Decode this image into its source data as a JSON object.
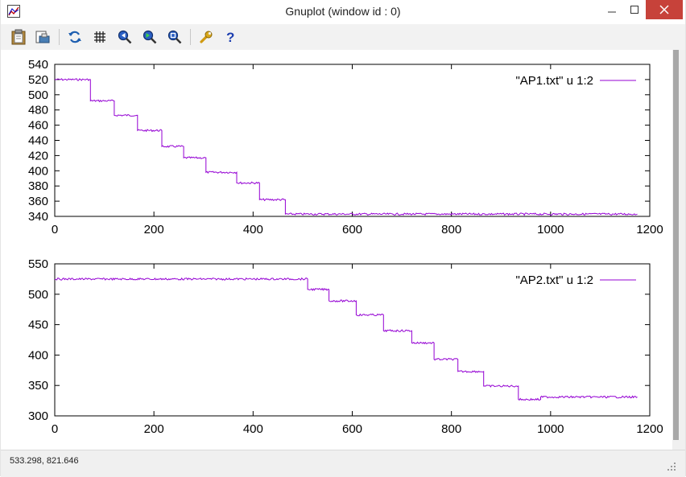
{
  "window": {
    "title": "Gnuplot (window id : 0)",
    "app_icon": "gnuplot-app-icon",
    "controls": [
      "minimize-icon",
      "maximize-icon",
      "close-icon"
    ]
  },
  "toolbar": {
    "buttons": [
      {
        "name": "copy-to-clipboard",
        "icon": "clipboard-icon"
      },
      {
        "name": "print",
        "icon": "print-icon"
      },
      {
        "name": "replot",
        "icon": "replot-icon"
      },
      {
        "name": "toggle-grid",
        "icon": "grid-icon"
      },
      {
        "name": "zoom-previous",
        "icon": "zoom-previous-icon"
      },
      {
        "name": "zoom-next",
        "icon": "zoom-next-icon"
      },
      {
        "name": "autoscale",
        "icon": "autoscale-icon"
      },
      {
        "name": "options",
        "icon": "wrench-icon"
      },
      {
        "name": "help",
        "icon": "help-icon"
      }
    ]
  },
  "status": {
    "coordinates": "533.298,  821.646"
  },
  "colors": {
    "series": "#9400d3",
    "close_button": "#c7423a",
    "toolbar_bg": "#f2f2f2"
  },
  "chart_data": [
    {
      "type": "line",
      "title": "",
      "xlabel": "",
      "ylabel": "",
      "xlim": [
        0,
        1200
      ],
      "ylim": [
        340,
        540
      ],
      "xticks": [
        "0",
        "200",
        "400",
        "600",
        "800",
        "1000",
        "1200"
      ],
      "yticks": [
        "340",
        "360",
        "380",
        "400",
        "420",
        "440",
        "460",
        "480",
        "500",
        "520",
        "540"
      ],
      "legend_position": "top-right",
      "series": [
        {
          "name": "\"AP1.txt\" u 1:2",
          "steps": [
            {
              "x": [
                0,
                72
              ],
              "y": 520
            },
            {
              "x": [
                72,
                120
              ],
              "y": 492
            },
            {
              "x": [
                120,
                167
              ],
              "y": 473
            },
            {
              "x": [
                167,
                216
              ],
              "y": 453
            },
            {
              "x": [
                216,
                260
              ],
              "y": 432
            },
            {
              "x": [
                260,
                305
              ],
              "y": 417
            },
            {
              "x": [
                305,
                367
              ],
              "y": 398
            },
            {
              "x": [
                367,
                413
              ],
              "y": 384
            },
            {
              "x": [
                413,
                465
              ],
              "y": 362
            },
            {
              "x": [
                465,
                1175
              ],
              "y": 343
            }
          ]
        }
      ]
    },
    {
      "type": "line",
      "title": "",
      "xlabel": "",
      "ylabel": "",
      "xlim": [
        0,
        1200
      ],
      "ylim": [
        300,
        550
      ],
      "xticks": [
        "0",
        "200",
        "400",
        "600",
        "800",
        "1000",
        "1200"
      ],
      "yticks": [
        "300",
        "350",
        "400",
        "450",
        "500",
        "550"
      ],
      "legend_position": "top-right",
      "series": [
        {
          "name": "\"AP2.txt\" u 1:2",
          "steps": [
            {
              "x": [
                0,
                510
              ],
              "y": 525
            },
            {
              "x": [
                510,
                553
              ],
              "y": 508
            },
            {
              "x": [
                553,
                608
              ],
              "y": 489
            },
            {
              "x": [
                608,
                663
              ],
              "y": 466
            },
            {
              "x": [
                663,
                720
              ],
              "y": 440
            },
            {
              "x": [
                720,
                765
              ],
              "y": 420
            },
            {
              "x": [
                765,
                813
              ],
              "y": 393
            },
            {
              "x": [
                813,
                865
              ],
              "y": 373
            },
            {
              "x": [
                865,
                935
              ],
              "y": 349
            },
            {
              "x": [
                935,
                980
              ],
              "y": 327
            },
            {
              "x": [
                980,
                1175
              ],
              "y": 331
            }
          ]
        }
      ]
    }
  ]
}
